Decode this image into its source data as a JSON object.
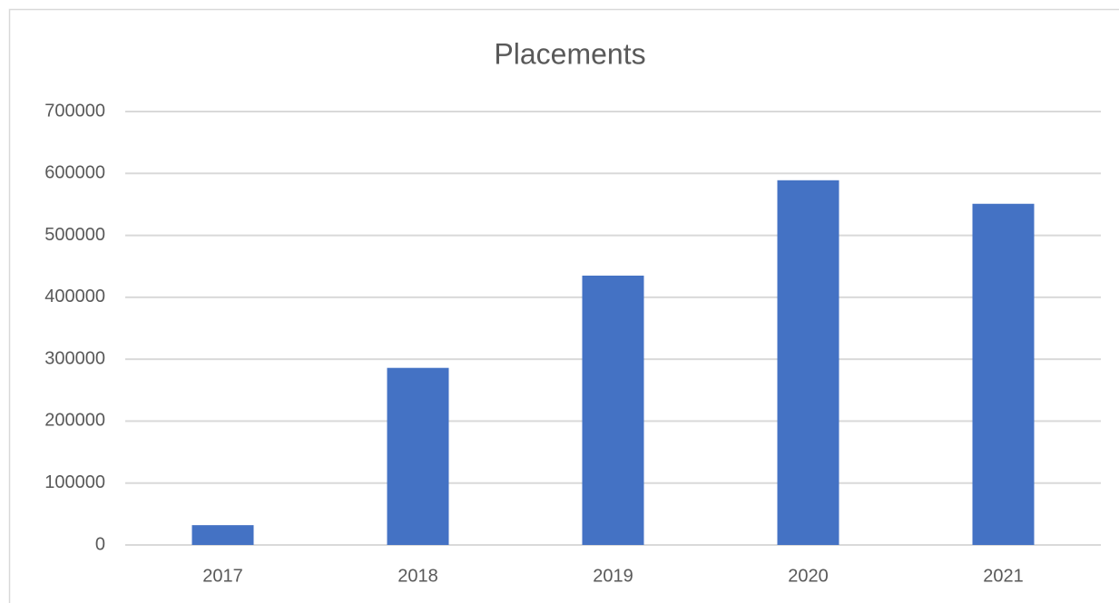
{
  "chart_data": {
    "type": "bar",
    "title": "Placements",
    "categories": [
      "2017",
      "2018",
      "2019",
      "2020",
      "2021"
    ],
    "values": [
      32000,
      286000,
      435000,
      589000,
      551000
    ],
    "color": "#4472c4",
    "ylim": [
      0,
      700000
    ],
    "yticks": [
      0,
      100000,
      200000,
      300000,
      400000,
      500000,
      600000,
      700000
    ],
    "grid": true
  }
}
